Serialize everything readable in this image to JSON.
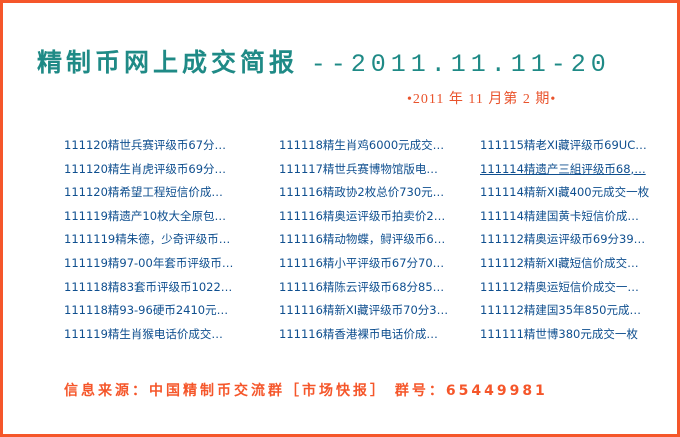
{
  "header": {
    "title": "精制币网上成交简报",
    "date_range": "--2011.11.11-20",
    "issue": "•2011 年 11 月第 2 期•"
  },
  "columns": [
    [
      "111120精世兵赛评级币67分…",
      "111120精生肖虎评级币69分…",
      "111120精希望工程短信价成…",
      "111119精遗产10枚大全原包…",
      "1111119精朱德，少奇评级币…",
      "111119精97-00年套币评级币…",
      "111118精83套币评级币1022…",
      "111118精93-96硬币2410元…",
      "111119精生肖猴电话价成交…"
    ],
    [
      "111118精生肖鸡6000元成交…",
      "111117精世兵赛博物馆版电…",
      "111116精政协2枚总价730元…",
      "111116精奥运评级币拍卖价2…",
      "111116精动物蝶，鲟评级币6…",
      "111116精小平评级币67分70…",
      "111116精陈云评级币68分85…",
      "111116精新XI藏评级币70分3…",
      "111116精香港裸币电话价成…"
    ],
    [
      "111115精老XI藏评级币69UC…",
      "111114精遗产三組评级币68,…",
      "111114精新XI藏400元成交一枚",
      "111114精建国黄卡短信价成…",
      "111112精奥运评级币69分39…",
      "111112精新XI藏短信价成交…",
      "111112精奥运短信价成交一…",
      "111112精建国35年850元成…",
      "111111精世博380元成交一枚"
    ]
  ],
  "footer": {
    "text": "信息来源：中国精制币交流群［市场快报］ 群号：65449981"
  },
  "colors": {
    "border": "#f5562a",
    "title": "#1f8a86",
    "link": "#0f4f8f",
    "accent": "#e9532c"
  }
}
